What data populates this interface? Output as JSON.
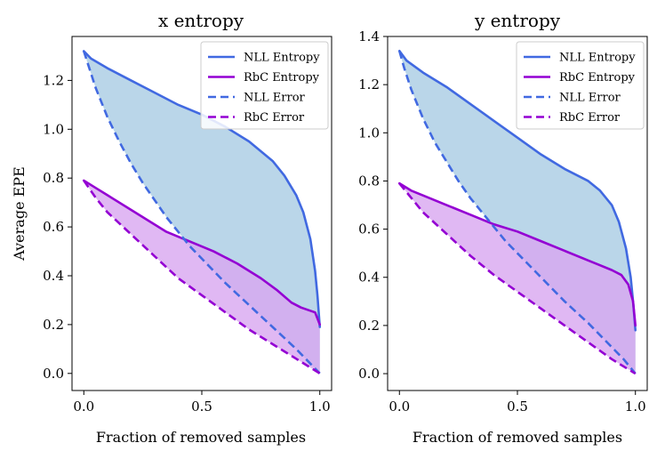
{
  "chart_data": [
    {
      "type": "area",
      "title": "x entropy",
      "xlabel": "Fraction of removed samples",
      "ylabel": "Average EPE",
      "xlim": [
        -0.05,
        1.05
      ],
      "ylim": [
        -0.07,
        1.38
      ],
      "xticks": [
        0.0,
        0.5,
        1.0
      ],
      "xtick_labels": [
        "0.0",
        "0.5",
        "1.0"
      ],
      "yticks": [
        0.0,
        0.2,
        0.4,
        0.6,
        0.8,
        1.0,
        1.2
      ],
      "ytick_labels": [
        "0.0",
        "0.2",
        "0.4",
        "0.6",
        "0.8",
        "1.0",
        "1.2"
      ],
      "grid": false,
      "legend_position": "top-right",
      "series": [
        {
          "name": "NLL Entropy",
          "style": "solid",
          "color": "#4169e1",
          "x": [
            0,
            0.03,
            0.1,
            0.2,
            0.3,
            0.4,
            0.5,
            0.6,
            0.7,
            0.8,
            0.85,
            0.9,
            0.93,
            0.96,
            0.98,
            0.99,
            1.0
          ],
          "y": [
            1.32,
            1.29,
            1.25,
            1.2,
            1.15,
            1.1,
            1.06,
            1.01,
            0.95,
            0.87,
            0.81,
            0.73,
            0.66,
            0.55,
            0.42,
            0.32,
            0.19
          ]
        },
        {
          "name": "RbC Entropy",
          "style": "solid",
          "color": "#9400d3",
          "x": [
            0,
            0.05,
            0.1,
            0.2,
            0.3,
            0.35,
            0.45,
            0.55,
            0.65,
            0.75,
            0.82,
            0.88,
            0.92,
            0.95,
            0.98,
            1.0
          ],
          "y": [
            0.79,
            0.76,
            0.73,
            0.67,
            0.61,
            0.58,
            0.54,
            0.5,
            0.45,
            0.39,
            0.34,
            0.29,
            0.27,
            0.26,
            0.25,
            0.2
          ]
        },
        {
          "name": "NLL Error",
          "style": "dashed",
          "color": "#4169e1",
          "x": [
            0,
            0.02,
            0.05,
            0.1,
            0.15,
            0.2,
            0.25,
            0.3,
            0.35,
            0.4,
            0.45,
            0.5,
            0.6,
            0.7,
            0.8,
            0.9,
            0.95,
            1.0
          ],
          "y": [
            1.32,
            1.26,
            1.17,
            1.05,
            0.95,
            0.86,
            0.78,
            0.71,
            0.64,
            0.58,
            0.52,
            0.47,
            0.37,
            0.28,
            0.19,
            0.1,
            0.05,
            0.0
          ]
        },
        {
          "name": "RbC Error",
          "style": "dashed",
          "color": "#9400d3",
          "x": [
            0,
            0.05,
            0.1,
            0.2,
            0.3,
            0.4,
            0.5,
            0.6,
            0.7,
            0.8,
            0.9,
            1.0
          ],
          "y": [
            0.79,
            0.72,
            0.66,
            0.57,
            0.48,
            0.39,
            0.32,
            0.25,
            0.18,
            0.12,
            0.06,
            0.0
          ]
        }
      ],
      "fills": [
        {
          "between": [
            "NLL Entropy",
            "NLL Error"
          ],
          "color": "#a9cce3"
        },
        {
          "between": [
            "RbC Entropy",
            "RbC Error"
          ],
          "color": "#d8a6f0"
        }
      ]
    },
    {
      "type": "area",
      "title": "y entropy",
      "xlabel": "Fraction of removed samples",
      "ylabel": "",
      "xlim": [
        -0.05,
        1.05
      ],
      "ylim": [
        -0.07,
        1.4
      ],
      "xticks": [
        0.0,
        0.5,
        1.0
      ],
      "xtick_labels": [
        "0.0",
        "0.5",
        "1.0"
      ],
      "yticks": [
        0.0,
        0.2,
        0.4,
        0.6,
        0.8,
        1.0,
        1.2,
        1.4
      ],
      "ytick_labels": [
        "0.0",
        "0.2",
        "0.4",
        "0.6",
        "0.8",
        "1.0",
        "1.2",
        "1.4"
      ],
      "grid": false,
      "legend_position": "top-right",
      "series": [
        {
          "name": "NLL Entropy",
          "style": "solid",
          "color": "#4169e1",
          "x": [
            0,
            0.03,
            0.1,
            0.2,
            0.3,
            0.4,
            0.5,
            0.6,
            0.7,
            0.8,
            0.85,
            0.9,
            0.93,
            0.96,
            0.98,
            0.99,
            1.0
          ],
          "y": [
            1.34,
            1.3,
            1.25,
            1.19,
            1.12,
            1.05,
            0.98,
            0.91,
            0.85,
            0.8,
            0.76,
            0.7,
            0.63,
            0.52,
            0.4,
            0.3,
            0.18
          ]
        },
        {
          "name": "RbC Entropy",
          "style": "solid",
          "color": "#9400d3",
          "x": [
            0,
            0.05,
            0.1,
            0.2,
            0.3,
            0.4,
            0.5,
            0.6,
            0.7,
            0.8,
            0.85,
            0.9,
            0.94,
            0.97,
            0.99,
            1.0
          ],
          "y": [
            0.79,
            0.76,
            0.74,
            0.7,
            0.66,
            0.62,
            0.59,
            0.55,
            0.51,
            0.47,
            0.45,
            0.43,
            0.41,
            0.37,
            0.3,
            0.2
          ]
        },
        {
          "name": "NLL Error",
          "style": "dashed",
          "color": "#4169e1",
          "x": [
            0,
            0.02,
            0.05,
            0.1,
            0.15,
            0.2,
            0.25,
            0.3,
            0.35,
            0.4,
            0.45,
            0.5,
            0.6,
            0.7,
            0.8,
            0.9,
            0.95,
            1.0
          ],
          "y": [
            1.34,
            1.27,
            1.18,
            1.06,
            0.96,
            0.88,
            0.8,
            0.73,
            0.67,
            0.61,
            0.55,
            0.5,
            0.4,
            0.3,
            0.21,
            0.11,
            0.06,
            0.0
          ]
        },
        {
          "name": "RbC Error",
          "style": "dashed",
          "color": "#9400d3",
          "x": [
            0,
            0.05,
            0.1,
            0.2,
            0.3,
            0.4,
            0.5,
            0.6,
            0.7,
            0.8,
            0.9,
            1.0
          ],
          "y": [
            0.79,
            0.73,
            0.67,
            0.58,
            0.49,
            0.41,
            0.34,
            0.27,
            0.2,
            0.13,
            0.06,
            0.0
          ]
        }
      ],
      "fills": [
        {
          "between": [
            "NLL Entropy",
            "NLL Error"
          ],
          "color": "#a9cce3"
        },
        {
          "between": [
            "RbC Entropy",
            "RbC Error"
          ],
          "color": "#d8a6f0"
        }
      ]
    }
  ]
}
